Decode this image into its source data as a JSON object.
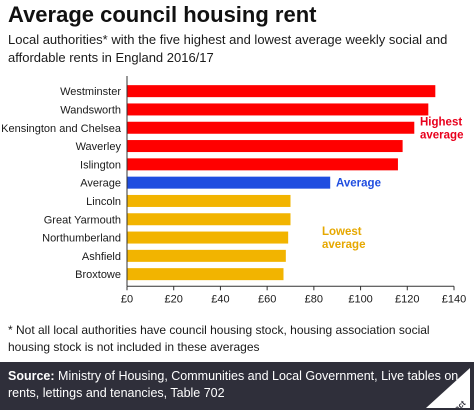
{
  "title": "Average council housing rent",
  "subtitle": "Local authorities* with the five highest and lowest average weekly social and affordable rents in England 2016/17",
  "footnote": "* Not all local authorities have council housing stock, housing association social housing stock is not included in these averages",
  "source_label": "Source:",
  "source_text": "Ministry of Housing, Communities and Local Government, Live tables on rents, lettings and tenancies, Table 702",
  "logo_text": "Full Fact",
  "colors": {
    "highest": "#ff0000",
    "average": "#1f4de0",
    "lowest": "#f2b400",
    "highest_label": "#e8001c",
    "average_label": "#1f4de0",
    "lowest_label": "#e6a800"
  },
  "chart_data": {
    "type": "bar",
    "orientation": "horizontal",
    "categories": [
      "Westminster",
      "Wandsworth",
      "Kensington and Chelsea",
      "Waverley",
      "Islington",
      "Average",
      "Lincoln",
      "Great Yarmouth",
      "Northumberland",
      "Ashfield",
      "Broxtowe"
    ],
    "values": [
      132,
      129,
      123,
      118,
      116,
      87,
      70,
      70,
      69,
      68,
      67
    ],
    "groups": [
      "highest",
      "highest",
      "highest",
      "highest",
      "highest",
      "average",
      "lowest",
      "lowest",
      "lowest",
      "lowest",
      "lowest"
    ],
    "group_labels": {
      "highest": [
        "Highest",
        "average"
      ],
      "average": [
        "Average"
      ],
      "lowest": [
        "Lowest",
        "average"
      ]
    },
    "xlim": [
      0,
      140
    ],
    "xticks": [
      0,
      20,
      40,
      60,
      80,
      100,
      120,
      140
    ],
    "xtick_labels": [
      "£0",
      "£20",
      "£40",
      "£60",
      "£80",
      "£100",
      "£120",
      "£140"
    ],
    "grid": false
  }
}
